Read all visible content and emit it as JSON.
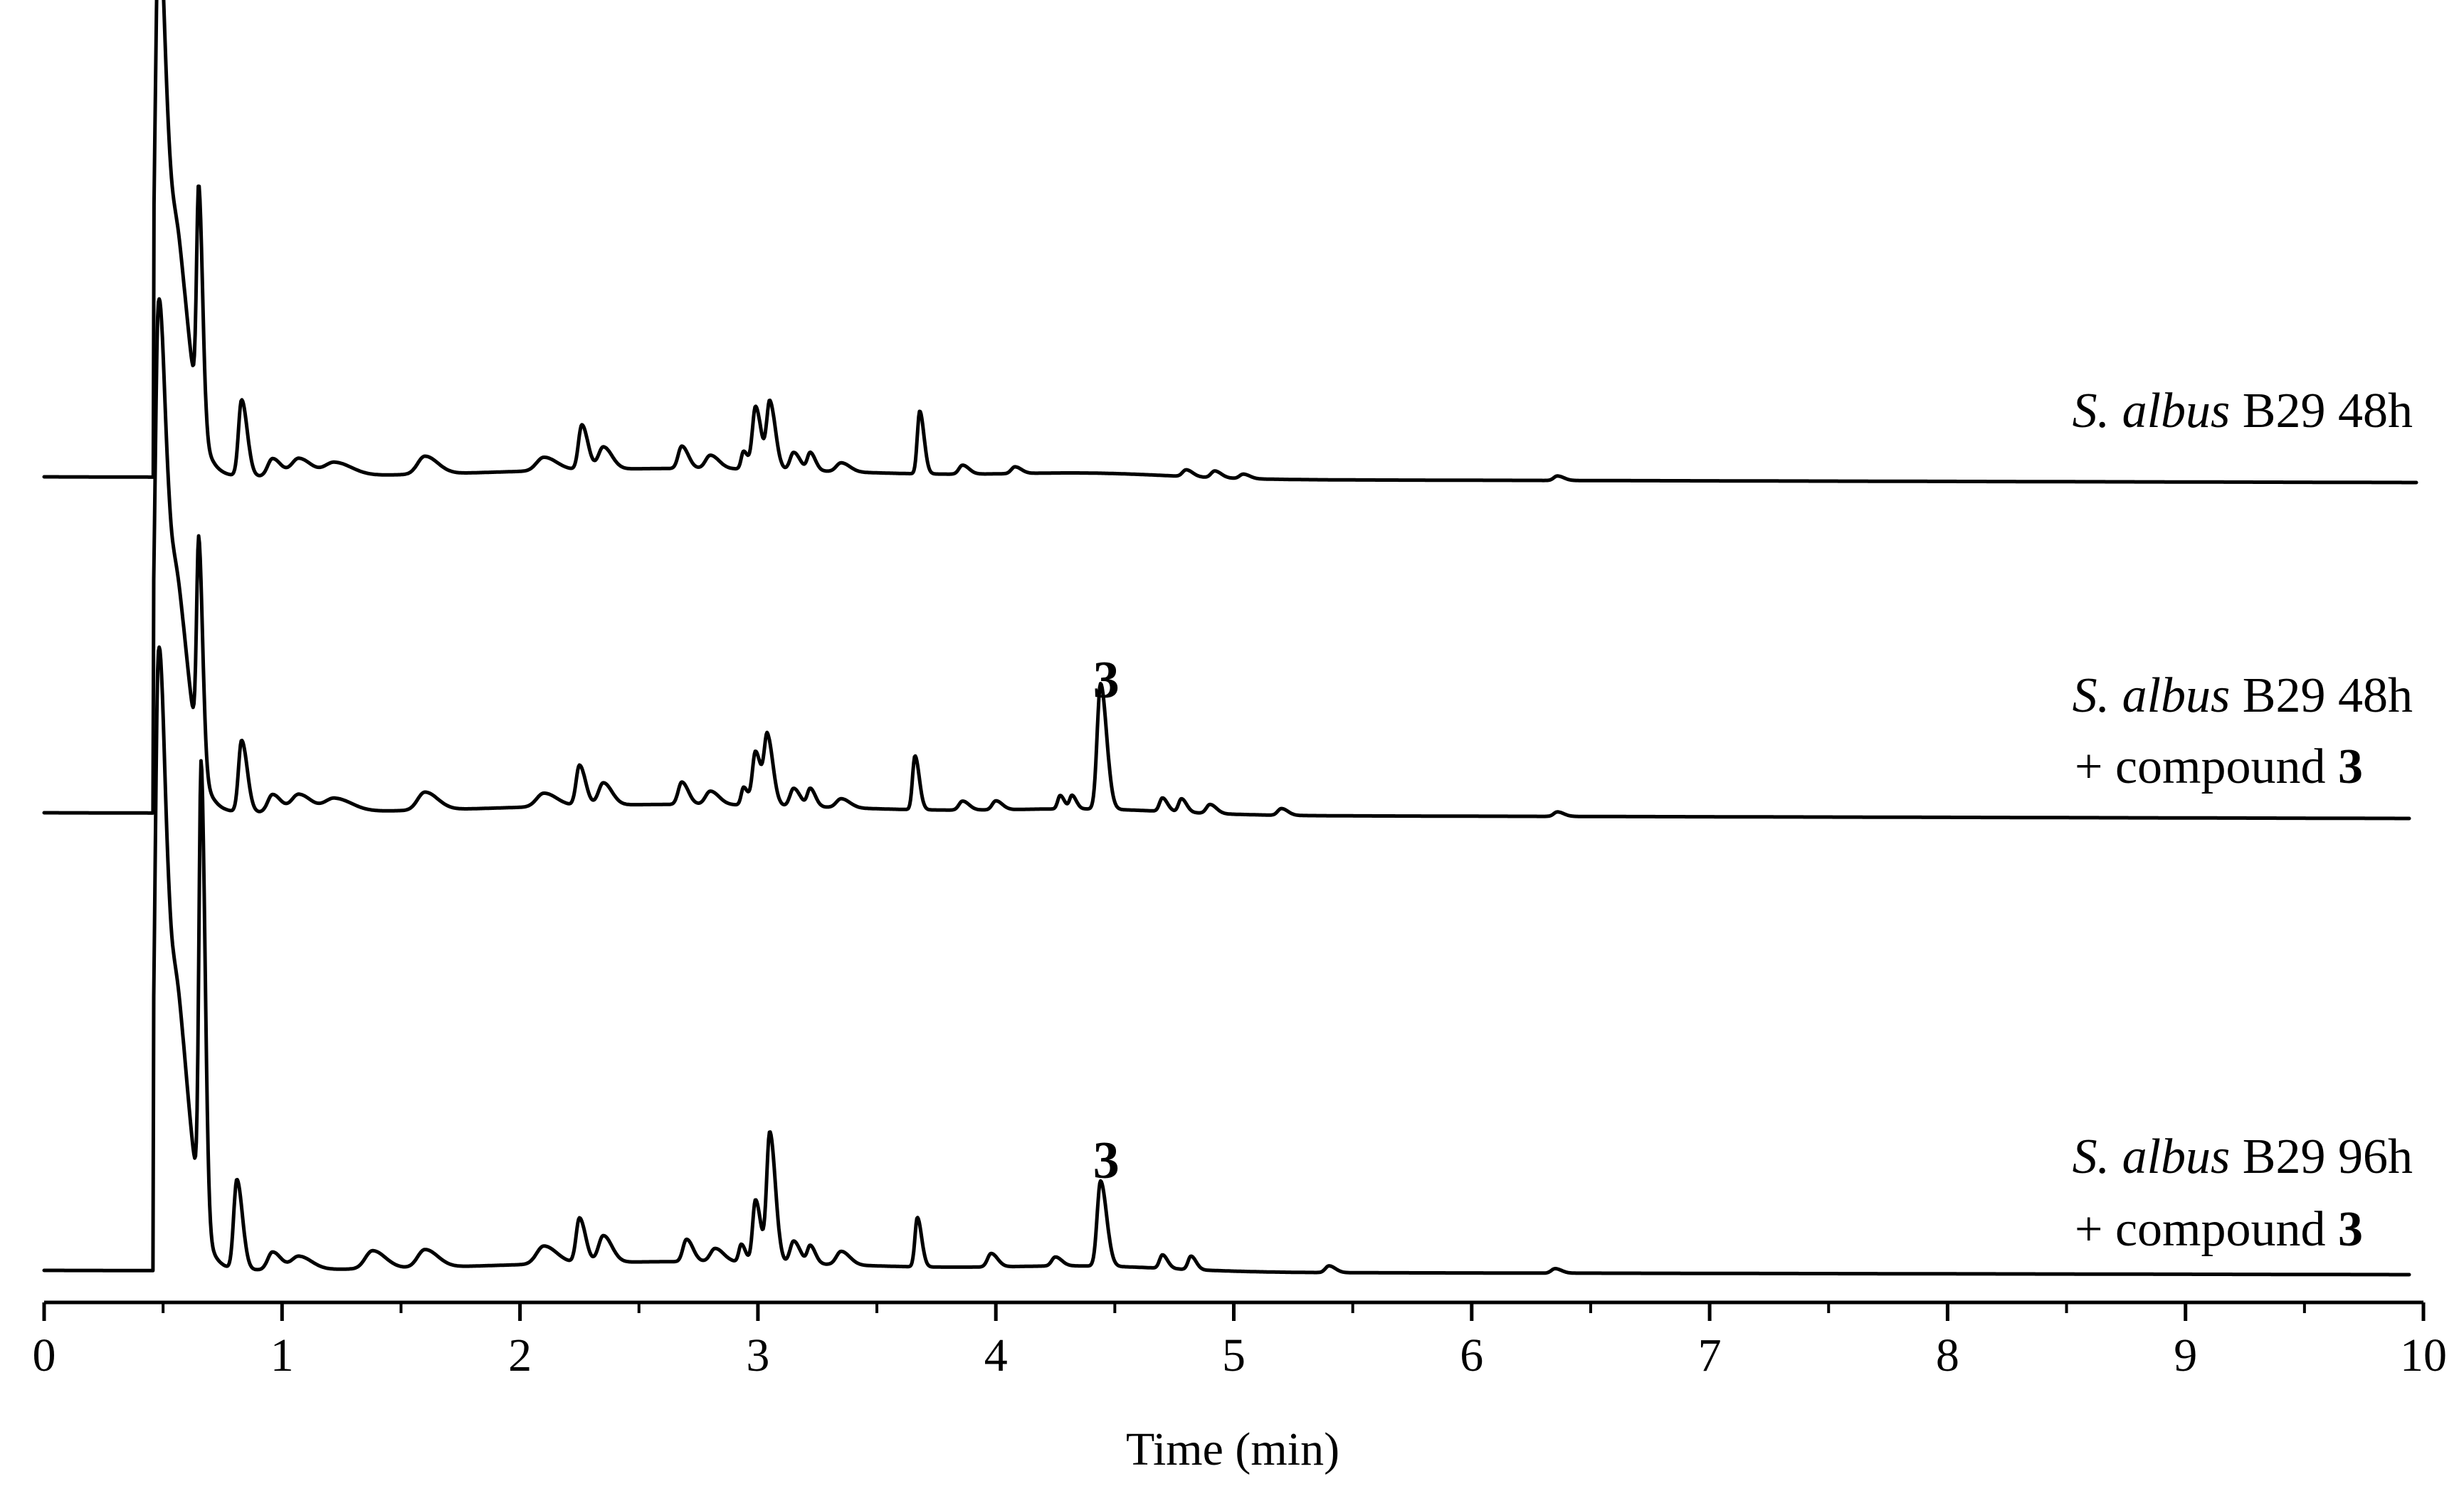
{
  "chart_data": {
    "type": "line",
    "title": "",
    "xlabel": "Time (min)",
    "ylabel": "",
    "xlim": [
      0,
      10
    ],
    "x_ticks": [
      "0",
      "1",
      "2",
      "3",
      "4",
      "5",
      "6",
      "7",
      "8",
      "9",
      "10"
    ],
    "grid": false,
    "legend": "none",
    "series": [
      {
        "label_italic": "S. albus",
        "label_plain": "B29 48h",
        "label_line2_prefix": "",
        "label_line2_bold": "",
        "peak_annotation": "",
        "baseline": 0.0,
        "peaks": [
          {
            "t": 0.48,
            "h": 100,
            "w": 0.014
          },
          {
            "t": 0.53,
            "h": 40,
            "w": 0.03
          },
          {
            "t": 0.57,
            "h": 18,
            "w": 0.04
          },
          {
            "t": 0.65,
            "h": 51,
            "w": 0.009
          },
          {
            "t": 0.83,
            "h": 17,
            "w": 0.013
          },
          {
            "t": 0.96,
            "h": 4,
            "w": 0.02
          },
          {
            "t": 1.07,
            "h": 4,
            "w": 0.03
          },
          {
            "t": 1.22,
            "h": 3,
            "w": 0.04
          },
          {
            "t": 1.6,
            "h": 4,
            "w": 0.03
          },
          {
            "t": 2.1,
            "h": 3,
            "w": 0.03
          },
          {
            "t": 2.26,
            "h": 10,
            "w": 0.014
          },
          {
            "t": 2.35,
            "h": 5,
            "w": 0.02
          },
          {
            "t": 2.68,
            "h": 5,
            "w": 0.015
          },
          {
            "t": 2.8,
            "h": 3,
            "w": 0.02
          },
          {
            "t": 2.94,
            "h": 4,
            "w": 0.01
          },
          {
            "t": 2.99,
            "h": 14,
            "w": 0.013
          },
          {
            "t": 3.05,
            "h": 15,
            "w": 0.013
          },
          {
            "t": 3.15,
            "h": 4,
            "w": 0.015
          },
          {
            "t": 3.22,
            "h": 4,
            "w": 0.012
          },
          {
            "t": 3.35,
            "h": 2,
            "w": 0.02
          },
          {
            "t": 3.68,
            "h": 14,
            "w": 0.01
          },
          {
            "t": 3.86,
            "h": 2,
            "w": 0.015
          },
          {
            "t": 4.08,
            "h": 1.5,
            "w": 0.015
          },
          {
            "t": 4.8,
            "h": 1.5,
            "w": 0.015
          },
          {
            "t": 4.92,
            "h": 1.5,
            "w": 0.015
          },
          {
            "t": 5.04,
            "h": 1,
            "w": 0.015
          },
          {
            "t": 6.36,
            "h": 1,
            "w": 0.015
          }
        ]
      },
      {
        "label_italic": "S. albus",
        "label_plain": "B29 48h",
        "label_line2_prefix": "+ compound ",
        "label_line2_bold": "3",
        "peak_annotation": "3",
        "baseline": 0.0,
        "peaks": [
          {
            "t": 0.48,
            "h": 92,
            "w": 0.014
          },
          {
            "t": 0.53,
            "h": 38,
            "w": 0.03
          },
          {
            "t": 0.57,
            "h": 17,
            "w": 0.04
          },
          {
            "t": 0.65,
            "h": 48,
            "w": 0.009
          },
          {
            "t": 0.83,
            "h": 16,
            "w": 0.013
          },
          {
            "t": 0.96,
            "h": 4,
            "w": 0.02
          },
          {
            "t": 1.07,
            "h": 4,
            "w": 0.03
          },
          {
            "t": 1.22,
            "h": 3,
            "w": 0.04
          },
          {
            "t": 1.6,
            "h": 4,
            "w": 0.03
          },
          {
            "t": 2.1,
            "h": 3,
            "w": 0.03
          },
          {
            "t": 2.25,
            "h": 9,
            "w": 0.014
          },
          {
            "t": 2.35,
            "h": 5,
            "w": 0.02
          },
          {
            "t": 2.68,
            "h": 5,
            "w": 0.015
          },
          {
            "t": 2.8,
            "h": 3,
            "w": 0.02
          },
          {
            "t": 2.94,
            "h": 4,
            "w": 0.01
          },
          {
            "t": 2.99,
            "h": 12,
            "w": 0.013
          },
          {
            "t": 3.04,
            "h": 15,
            "w": 0.013
          },
          {
            "t": 3.15,
            "h": 4,
            "w": 0.015
          },
          {
            "t": 3.22,
            "h": 4,
            "w": 0.012
          },
          {
            "t": 3.35,
            "h": 2,
            "w": 0.02
          },
          {
            "t": 3.66,
            "h": 12,
            "w": 0.01
          },
          {
            "t": 3.86,
            "h": 2,
            "w": 0.015
          },
          {
            "t": 4.0,
            "h": 2,
            "w": 0.015
          },
          {
            "t": 4.27,
            "h": 3,
            "w": 0.01
          },
          {
            "t": 4.32,
            "h": 3,
            "w": 0.01
          },
          {
            "t": 4.44,
            "h": 28,
            "w": 0.014
          },
          {
            "t": 4.7,
            "h": 3,
            "w": 0.012
          },
          {
            "t": 4.78,
            "h": 3,
            "w": 0.012
          },
          {
            "t": 4.9,
            "h": 2,
            "w": 0.015
          },
          {
            "t": 5.2,
            "h": 1.5,
            "w": 0.015
          },
          {
            "t": 6.36,
            "h": 1,
            "w": 0.015
          }
        ]
      },
      {
        "label_italic": "S. albus",
        "label_plain": "B29 96h",
        "label_line2_prefix": "+  compound ",
        "label_line2_bold": "3",
        "peak_annotation": "3",
        "baseline": 0.0,
        "peaks": [
          {
            "t": 0.48,
            "h": 114,
            "w": 0.014
          },
          {
            "t": 0.53,
            "h": 45,
            "w": 0.03
          },
          {
            "t": 0.57,
            "h": 22,
            "w": 0.04
          },
          {
            "t": 0.66,
            "h": 100,
            "w": 0.009
          },
          {
            "t": 0.81,
            "h": 20,
            "w": 0.013
          },
          {
            "t": 0.96,
            "h": 4,
            "w": 0.02
          },
          {
            "t": 1.07,
            "h": 3,
            "w": 0.03
          },
          {
            "t": 1.38,
            "h": 4,
            "w": 0.03
          },
          {
            "t": 1.6,
            "h": 4,
            "w": 0.03
          },
          {
            "t": 2.1,
            "h": 4,
            "w": 0.03
          },
          {
            "t": 2.25,
            "h": 10,
            "w": 0.014
          },
          {
            "t": 2.35,
            "h": 6,
            "w": 0.02
          },
          {
            "t": 2.7,
            "h": 5,
            "w": 0.015
          },
          {
            "t": 2.82,
            "h": 3,
            "w": 0.02
          },
          {
            "t": 2.93,
            "h": 4,
            "w": 0.01
          },
          {
            "t": 2.99,
            "h": 14,
            "w": 0.012
          },
          {
            "t": 3.05,
            "h": 29,
            "w": 0.013
          },
          {
            "t": 3.15,
            "h": 5,
            "w": 0.015
          },
          {
            "t": 3.22,
            "h": 4,
            "w": 0.012
          },
          {
            "t": 3.35,
            "h": 3,
            "w": 0.02
          },
          {
            "t": 3.67,
            "h": 11,
            "w": 0.01
          },
          {
            "t": 3.98,
            "h": 3,
            "w": 0.015
          },
          {
            "t": 4.25,
            "h": 2,
            "w": 0.015
          },
          {
            "t": 4.44,
            "h": 19,
            "w": 0.014
          },
          {
            "t": 4.7,
            "h": 3,
            "w": 0.012
          },
          {
            "t": 4.82,
            "h": 3,
            "w": 0.012
          },
          {
            "t": 5.4,
            "h": 1.5,
            "w": 0.015
          },
          {
            "t": 6.35,
            "h": 1,
            "w": 0.015
          }
        ]
      }
    ]
  }
}
